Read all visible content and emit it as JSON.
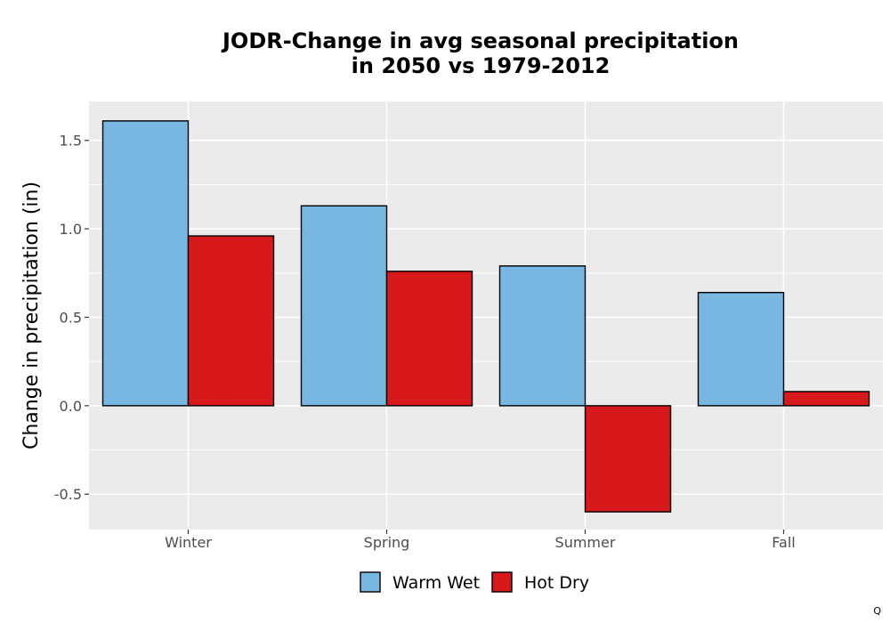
{
  "chart_data": {
    "type": "bar",
    "title_lines": [
      "JODR-Change in avg seasonal precipitation",
      "in 2050 vs 1979-2012"
    ],
    "xlabel": "",
    "ylabel": "Change in precipitation (in)",
    "categories": [
      "Winter",
      "Spring",
      "Summer",
      "Fall"
    ],
    "series": [
      {
        "name": "Warm Wet",
        "color": "#78b7e1",
        "values": [
          1.61,
          1.13,
          0.79,
          0.64
        ]
      },
      {
        "name": "Hot Dry",
        "color": "#d7191c",
        "values": [
          0.96,
          0.76,
          -0.6,
          0.08
        ]
      }
    ],
    "ylim": [
      -0.7,
      1.72
    ],
    "yticks": [
      -0.5,
      0.0,
      0.5,
      1.0,
      1.5
    ],
    "ytick_labels": [
      "-0.5",
      "0.0",
      "0.5",
      "1.0",
      "1.5"
    ],
    "grid": true,
    "legend_position": "bottom",
    "caption": "Q"
  }
}
